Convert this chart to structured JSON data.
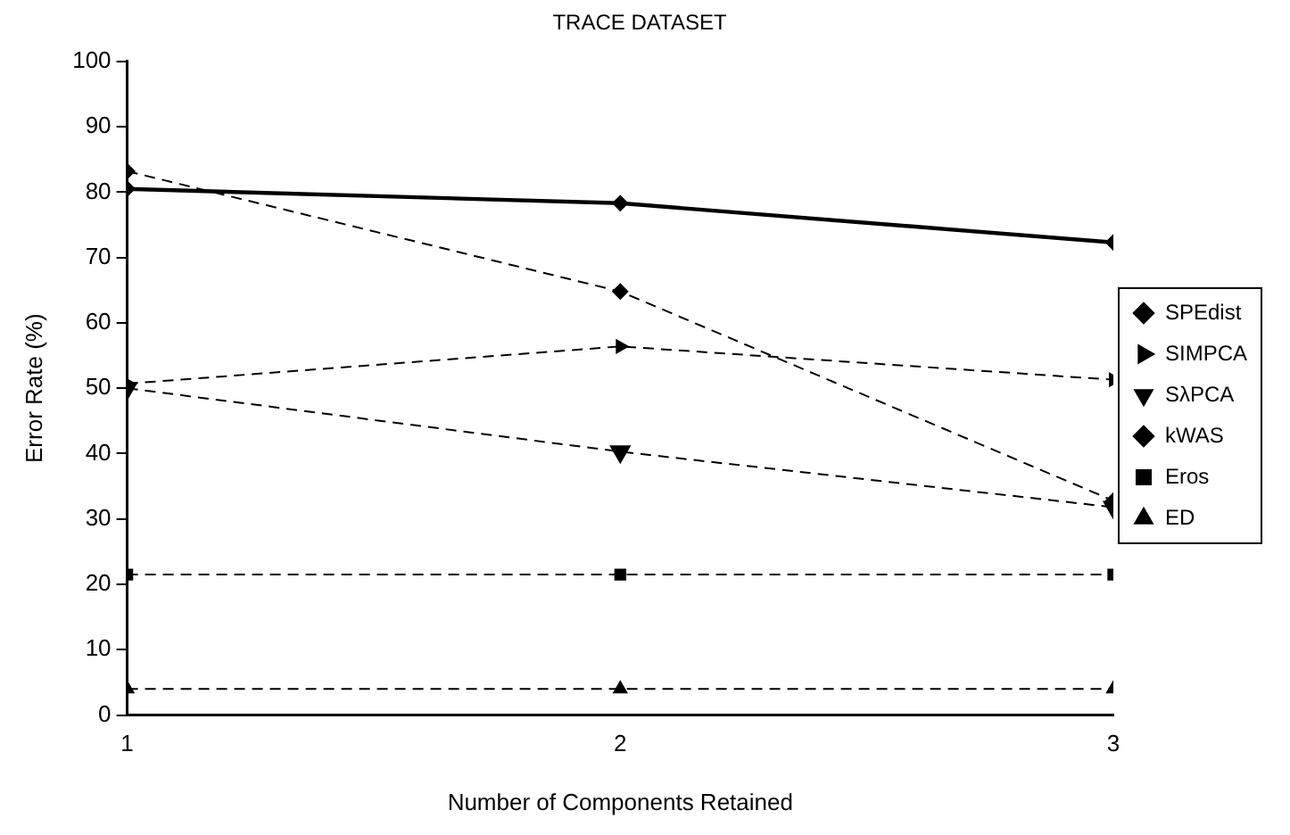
{
  "chart_data": {
    "type": "line",
    "title": "TRACE DATASET",
    "xlabel": "Number of Components Retained",
    "ylabel": "Error Rate (%)",
    "x": [
      1,
      2,
      3
    ],
    "xlim": [
      1,
      3
    ],
    "xticks": [
      1,
      2,
      3
    ],
    "ylim": [
      0,
      100
    ],
    "yticks": [
      0,
      10,
      20,
      30,
      40,
      50,
      60,
      70,
      80,
      90,
      100
    ],
    "grid": false,
    "legend": "right",
    "series": [
      {
        "name": "SPEdist",
        "color": "#000000",
        "values": [
          80.5,
          78.3,
          72.3
        ],
        "marker": "diamond",
        "line_style": "solid"
      },
      {
        "name": "SIMPCA",
        "color": "#000000",
        "values": [
          50.7,
          56.4,
          51.3
        ],
        "marker": "triangle-right",
        "line_style": "dashed"
      },
      {
        "name": "SλPCA",
        "color": "#000000",
        "values": [
          50,
          40.3,
          31.8
        ],
        "marker": "triangle-down",
        "line_style": "dashed"
      },
      {
        "name": "kWAS",
        "color": "#000000",
        "values": [
          83.2,
          64.8,
          32.8
        ],
        "marker": "diamond",
        "line_style": "dashed"
      },
      {
        "name": "Eros",
        "color": "#000000",
        "values": [
          21.5,
          21.5,
          21.5
        ],
        "marker": "square",
        "line_style": "dashed"
      },
      {
        "name": "ED",
        "color": "#000000",
        "values": [
          4,
          4,
          4
        ],
        "marker": "triangle",
        "line_style": "dashed"
      }
    ]
  }
}
